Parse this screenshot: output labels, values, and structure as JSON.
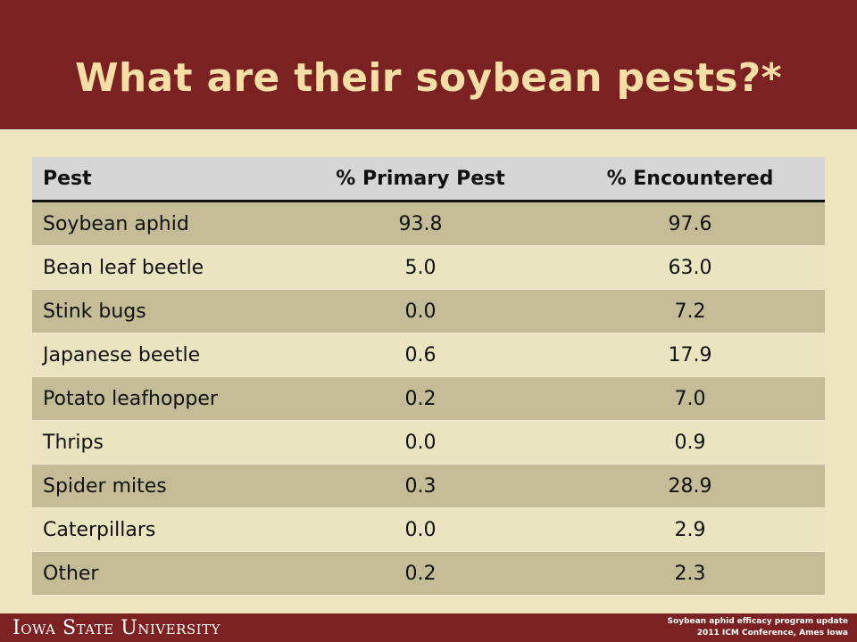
{
  "slide": {
    "title": "What are their soybean pests?*"
  },
  "table": {
    "headers": [
      "Pest",
      "% Primary Pest",
      "% Encountered"
    ],
    "rows": [
      {
        "pest": "Soybean aphid",
        "primary": "93.8",
        "encountered": "97.6"
      },
      {
        "pest": "Bean leaf beetle",
        "primary": "5.0",
        "encountered": "63.0"
      },
      {
        "pest": "Stink bugs",
        "primary": "0.0",
        "encountered": "7.2"
      },
      {
        "pest": "Japanese beetle",
        "primary": "0.6",
        "encountered": "17.9"
      },
      {
        "pest": "Potato leafhopper",
        "primary": "0.2",
        "encountered": "7.0"
      },
      {
        "pest": "Thrips",
        "primary": "0.0",
        "encountered": "0.9"
      },
      {
        "pest": "Spider mites",
        "primary": "0.3",
        "encountered": "28.9"
      },
      {
        "pest": "Caterpillars",
        "primary": "0.0",
        "encountered": "2.9"
      },
      {
        "pest": "Other",
        "primary": "0.2",
        "encountered": "2.3"
      }
    ]
  },
  "footer": {
    "logo": "Iowa State University",
    "line1": "Soybean aphid efficacy program update",
    "line2": "2011 ICM Conference, Ames Iowa"
  },
  "colors": {
    "header_bg": "#7b2121",
    "title_text": "#f6dfa6",
    "page_bg": "#ede5bf",
    "row_dark": "#c4bc96",
    "row_light": "#ebe4c1",
    "header_row": "#d6d6d6"
  }
}
